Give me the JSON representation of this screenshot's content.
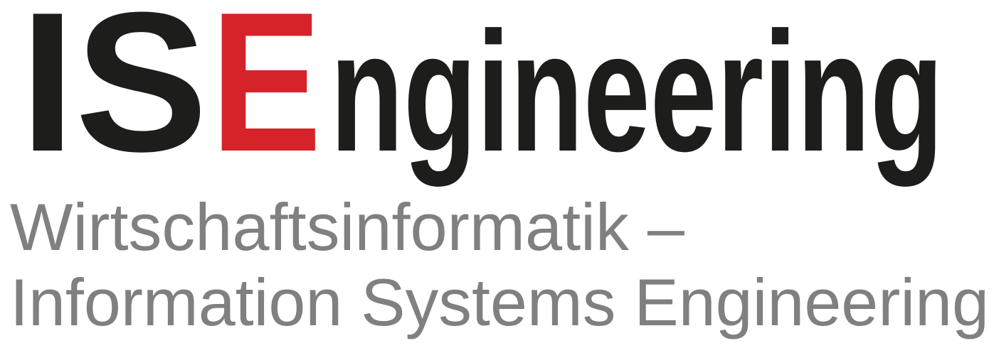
{
  "logo": {
    "prefix": "IS",
    "accent": "E",
    "suffix": "ngineering"
  },
  "subtitle": {
    "lines": [
      "Wirtschaftsinformatik –",
      "Information Systems Engineering"
    ]
  }
}
